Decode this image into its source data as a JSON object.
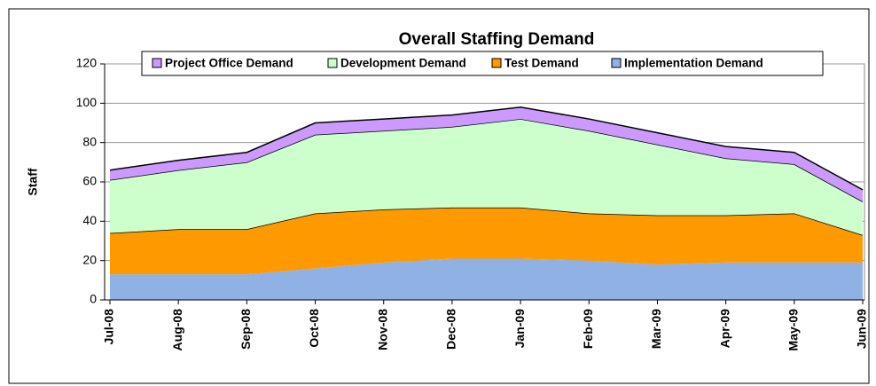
{
  "chart_data": {
    "type": "stacked_area",
    "title": "Overall Staffing Demand",
    "y_label": "Staff",
    "categories": [
      "Jul-08",
      "Aug-08",
      "Sep-08",
      "Oct-08",
      "Nov-08",
      "Dec-08",
      "Jan-09",
      "Feb-09",
      "Mar-09",
      "Apr-09",
      "May-09",
      "Jun-09"
    ],
    "series": [
      {
        "name": "Project Office Demand",
        "color": "#cc99ff",
        "values": [
          5,
          5,
          5,
          6,
          6,
          6,
          6,
          6,
          6,
          6,
          6,
          6
        ]
      },
      {
        "name": "Development Demand",
        "color": "#ccffcc",
        "values": [
          27,
          30,
          34,
          40,
          40,
          41,
          45,
          42,
          36,
          29,
          25,
          17
        ]
      },
      {
        "name": "Test Demand",
        "color": "#ff9900",
        "values": [
          21,
          23,
          23,
          28,
          27,
          26,
          26,
          24,
          25,
          24,
          25,
          14
        ]
      },
      {
        "name": "Implementation Demand",
        "color": "#8fb1e3",
        "values": [
          13,
          13,
          13,
          16,
          19,
          21,
          21,
          20,
          18,
          19,
          19,
          19
        ]
      }
    ],
    "ylim": [
      0,
      120
    ],
    "yticks": [
      0,
      20,
      40,
      60,
      80,
      100,
      120
    ],
    "grid": true
  }
}
